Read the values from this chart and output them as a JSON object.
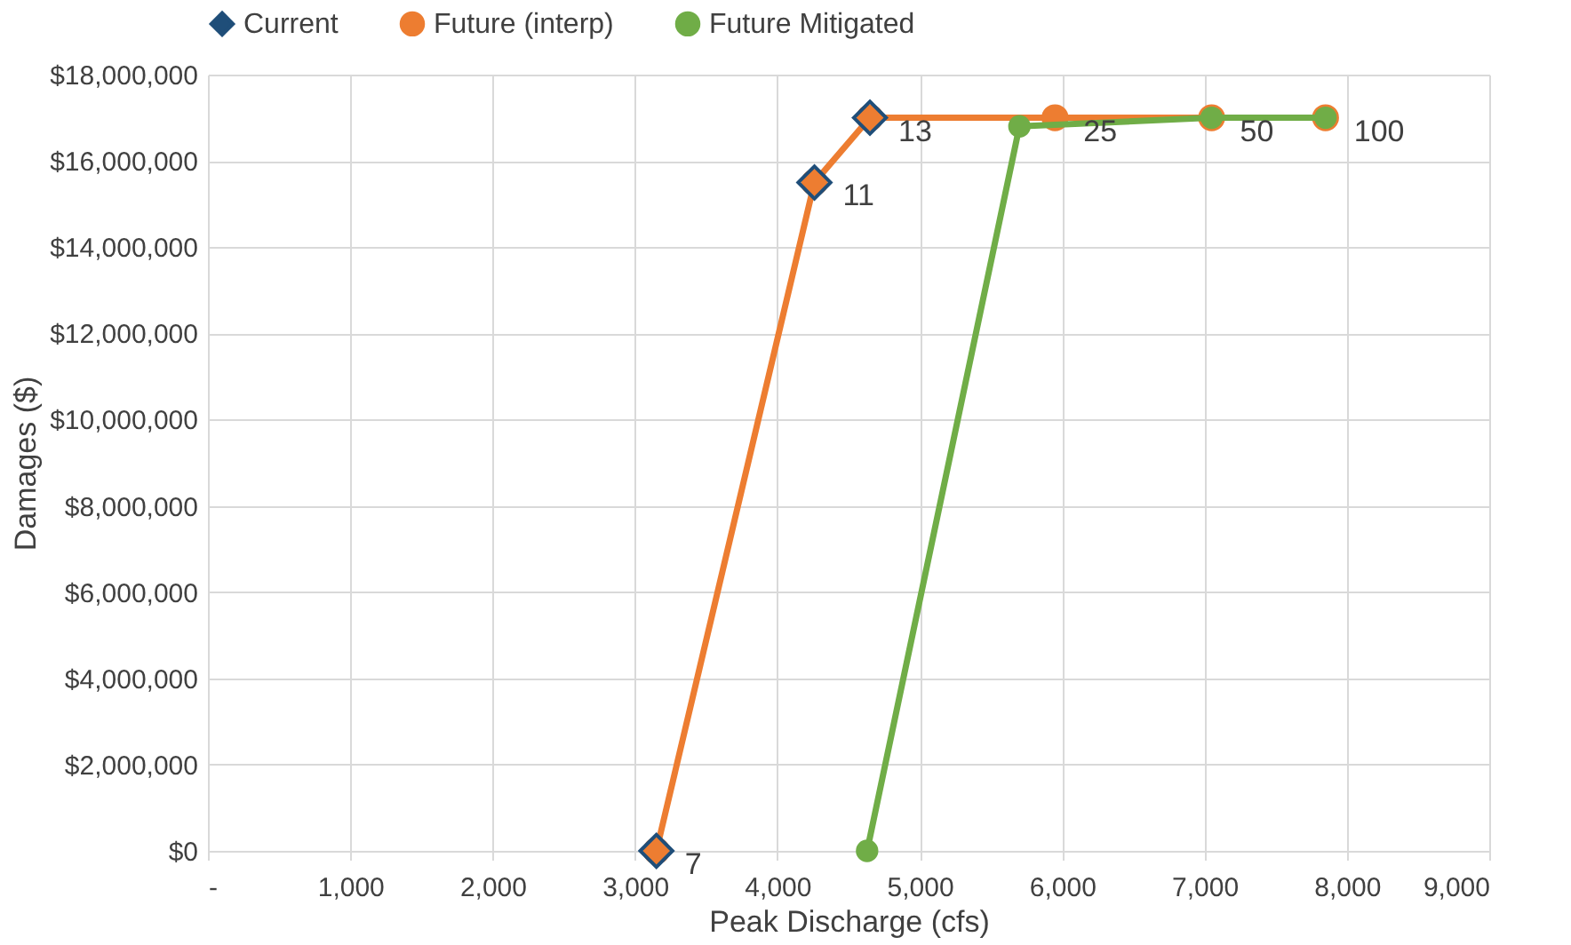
{
  "chart_data": {
    "type": "line",
    "xlabel": "Peak Discharge (cfs)",
    "ylabel": "Damages ($)",
    "xlim": [
      0,
      9000
    ],
    "xticks": [
      {
        "value": 0,
        "label": "-"
      },
      {
        "value": 1000,
        "label": "1,000"
      },
      {
        "value": 2000,
        "label": "2,000"
      },
      {
        "value": 3000,
        "label": "3,000"
      },
      {
        "value": 4000,
        "label": "4,000"
      },
      {
        "value": 5000,
        "label": "5,000"
      },
      {
        "value": 6000,
        "label": "6,000"
      },
      {
        "value": 7000,
        "label": "7,000"
      },
      {
        "value": 8000,
        "label": "8,000"
      },
      {
        "value": 9000,
        "label": "9,000"
      }
    ],
    "ylim": [
      0,
      18000000
    ],
    "yticks": [
      {
        "value": 0,
        "label": "$0"
      },
      {
        "value": 2000000,
        "label": "$2,000,000"
      },
      {
        "value": 4000000,
        "label": "$4,000,000"
      },
      {
        "value": 6000000,
        "label": "$6,000,000"
      },
      {
        "value": 8000000,
        "label": "$8,000,000"
      },
      {
        "value": 10000000,
        "label": "$10,000,000"
      },
      {
        "value": 12000000,
        "label": "$12,000,000"
      },
      {
        "value": 14000000,
        "label": "$14,000,000"
      },
      {
        "value": 16000000,
        "label": "$16,000,000"
      },
      {
        "value": 18000000,
        "label": "$18,000,000"
      }
    ],
    "grid": true,
    "legend": "top",
    "series": [
      {
        "name": "Current",
        "type": "scatter",
        "marker": "diamond",
        "color": "#1f4e79",
        "x": [
          3150,
          4260,
          4650
        ],
        "values": [
          0,
          15500000,
          17000000
        ]
      },
      {
        "name": "Future (interp)",
        "marker": "circle",
        "color": "#ed7d31",
        "x": [
          3150,
          4260,
          4650,
          5950,
          7050,
          7850
        ],
        "values": [
          0,
          15500000,
          17000000,
          17000000,
          17000000,
          17000000
        ]
      },
      {
        "name": "Future Mitigated",
        "marker": "circle",
        "color": "#70ad47",
        "x": [
          4630,
          5700,
          7050,
          7850
        ],
        "values": [
          0,
          16800000,
          17000000,
          17000000
        ]
      }
    ],
    "annotations": [
      {
        "text": "7",
        "x": 3150,
        "y": 0
      },
      {
        "text": "11",
        "x": 4260,
        "y": 15500000
      },
      {
        "text": "13",
        "x": 4650,
        "y": 17000000
      },
      {
        "text": "25",
        "x": 5950,
        "y": 17000000
      },
      {
        "text": "50",
        "x": 7050,
        "y": 17000000
      },
      {
        "text": "100",
        "x": 7850,
        "y": 17000000
      }
    ]
  }
}
